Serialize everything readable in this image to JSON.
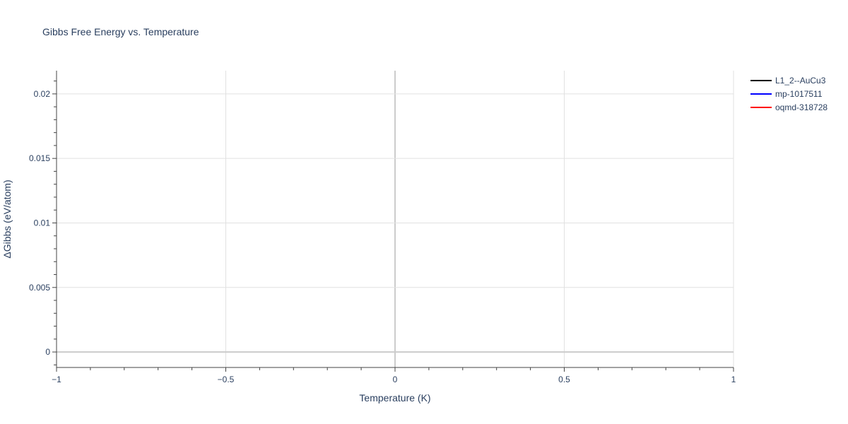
{
  "chart_data": {
    "type": "line",
    "title": "Gibbs Free Energy vs. Temperature",
    "xlabel": "Temperature (K)",
    "ylabel": "ΔGibbs (eV/atom)",
    "xlim": [
      -1,
      1
    ],
    "ylim": [
      -0.0012,
      0.0218
    ],
    "xticks": [
      -1,
      -0.5,
      0,
      0.5,
      1
    ],
    "xtick_labels": [
      "−1",
      "−0.5",
      "0",
      "0.5",
      "1"
    ],
    "yticks": [
      0,
      0.005,
      0.01,
      0.015,
      0.02
    ],
    "ytick_labels": [
      "0",
      "0.005",
      "0.01",
      "0.015",
      "0.02"
    ],
    "grid": true,
    "legend_placement": "top-right",
    "series": [
      {
        "name": "L1_2--AuCu3",
        "color": "#000000",
        "x": [],
        "y": []
      },
      {
        "name": "mp-1017511",
        "color": "#0000ff",
        "x": [],
        "y": []
      },
      {
        "name": "oqmd-318728",
        "color": "#ff0000",
        "x": [],
        "y": []
      }
    ]
  }
}
